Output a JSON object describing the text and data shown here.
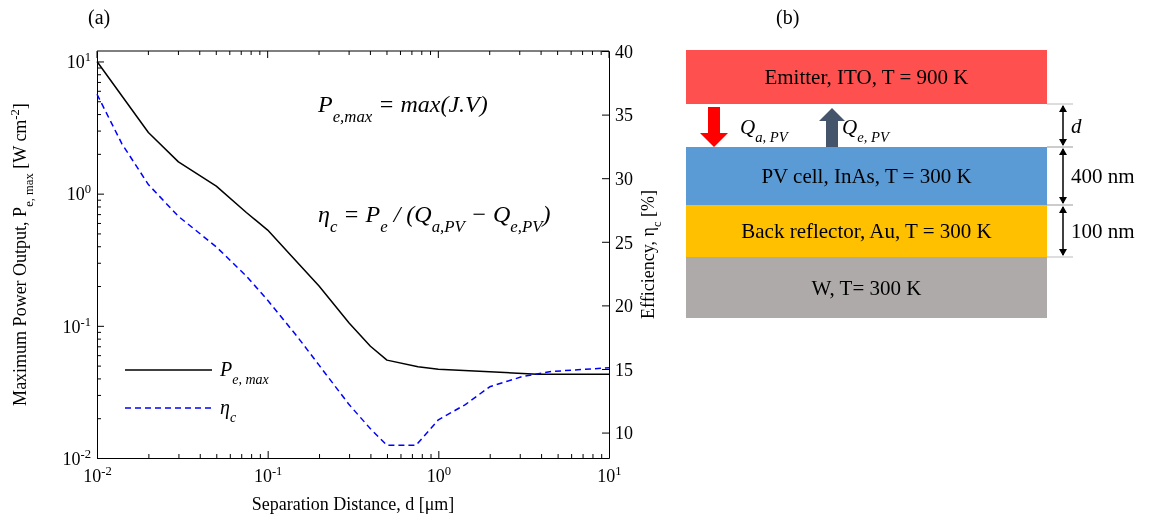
{
  "chart_data": [
    {
      "type": "line",
      "title": "(a)",
      "xlabel": "Separation Distance, d [μm]",
      "ylabel": "Maximum Power Output, P$_{e, max}$ [W cm$^{-2}$]",
      "y2label": "Efficiency, η$_{c}$ [%]",
      "log": "xy",
      "grid": false,
      "legend": "bottom left",
      "marker": "none",
      "xlim": [
        0.01,
        10
      ],
      "ylim": [
        0.01,
        12
      ],
      "y2lim": [
        8,
        40
      ],
      "xticks": [
        {
          "value": 0.01,
          "label": "10$^{-2}$"
        },
        {
          "value": 0.02,
          "label": null
        },
        {
          "value": 0.03,
          "label": null
        },
        {
          "value": 0.04,
          "label": null
        },
        {
          "value": 0.05,
          "label": null
        },
        {
          "value": 0.06,
          "label": null
        },
        {
          "value": 0.07,
          "label": null
        },
        {
          "value": 0.08,
          "label": null
        },
        {
          "value": 0.09,
          "label": null
        },
        {
          "value": 0.1,
          "label": "10$^{-1}$"
        },
        {
          "value": 0.2,
          "label": null
        },
        {
          "value": 0.3,
          "label": null
        },
        {
          "value": 0.4,
          "label": null
        },
        {
          "value": 0.5,
          "label": null
        },
        {
          "value": 0.6,
          "label": null
        },
        {
          "value": 0.7,
          "label": null
        },
        {
          "value": 0.8,
          "label": null
        },
        {
          "value": 0.9,
          "label": null
        },
        {
          "value": 1,
          "label": "10$^{0}$"
        },
        {
          "value": 2,
          "label": null
        },
        {
          "value": 3,
          "label": null
        },
        {
          "value": 4,
          "label": null
        },
        {
          "value": 5,
          "label": null
        },
        {
          "value": 6,
          "label": null
        },
        {
          "value": 7,
          "label": null
        },
        {
          "value": 8,
          "label": null
        },
        {
          "value": 9,
          "label": null
        },
        {
          "value": 10,
          "label": "10$^{1}$"
        }
      ],
      "yticks": [
        {
          "value": 0.01,
          "label": "10$^{-2}$"
        },
        {
          "value": 0.02,
          "label": null
        },
        {
          "value": 0.03,
          "label": null
        },
        {
          "value": 0.04,
          "label": null
        },
        {
          "value": 0.05,
          "label": null
        },
        {
          "value": 0.06,
          "label": null
        },
        {
          "value": 0.07,
          "label": null
        },
        {
          "value": 0.08,
          "label": null
        },
        {
          "value": 0.09,
          "label": null
        },
        {
          "value": 0.1,
          "label": "10$^{-1}$"
        },
        {
          "value": 0.2,
          "label": null
        },
        {
          "value": 0.3,
          "label": null
        },
        {
          "value": 0.4,
          "label": null
        },
        {
          "value": 0.5,
          "label": null
        },
        {
          "value": 0.6,
          "label": null
        },
        {
          "value": 0.7,
          "label": null
        },
        {
          "value": 0.8,
          "label": null
        },
        {
          "value": 0.9,
          "label": null
        },
        {
          "value": 1,
          "label": "10$^{0}$"
        },
        {
          "value": 2,
          "label": null
        },
        {
          "value": 3,
          "label": null
        },
        {
          "value": 4,
          "label": null
        },
        {
          "value": 5,
          "label": null
        },
        {
          "value": 6,
          "label": null
        },
        {
          "value": 7,
          "label": null
        },
        {
          "value": 8,
          "label": null
        },
        {
          "value": 9,
          "label": null
        },
        {
          "value": 10,
          "label": "10$^{1}$"
        }
      ],
      "y2ticks": [
        10,
        15,
        20,
        25,
        30,
        35,
        40
      ],
      "annotations": [
        "P$_{e,max}$ = max(J.V)",
        "η$_{c}$ = P$_{e}$ / (Q$_{a,PV}$ − Q$_{e,PV}$)"
      ],
      "series": [
        {
          "name": "P$_{e, max}$",
          "color": "#000000",
          "line_style": "solid",
          "x": [
            0.01,
            0.02,
            0.03,
            0.05,
            0.075,
            0.1,
            0.2,
            0.3,
            0.4,
            0.5,
            0.76,
            1,
            2,
            3.8,
            10
          ],
          "values": [
            10,
            2.9,
            1.74,
            1.14,
            0.72,
            0.53,
            0.2,
            0.105,
            0.07,
            0.055,
            0.049,
            0.047,
            0.045,
            0.043,
            0.043
          ]
        },
        {
          "name": "η$_{c}$",
          "color": "#0000ff",
          "line_style": "dashed",
          "axis": "y2",
          "x": [
            0.01,
            0.014,
            0.02,
            0.03,
            0.05,
            0.075,
            0.1,
            0.15,
            0.2,
            0.3,
            0.4,
            0.5,
            0.74,
            1,
            1.44,
            2,
            3.1,
            4.6,
            10
          ],
          "values": [
            36.6,
            32.7,
            29.5,
            27,
            24.6,
            22.3,
            20.4,
            17.5,
            15.3,
            12.2,
            10.3,
            9,
            9,
            11,
            12.2,
            13.6,
            14.4,
            14.8,
            15.1
          ]
        }
      ]
    },
    {
      "type": "other",
      "title": "(b)",
      "categories": [
        "Emitter, ITO, T = 900 K",
        "PV cell, InAs, T = 300 K",
        "Back reflector, Au, T = 300 K",
        "W, T= 300 K"
      ],
      "colors": [
        "#ff5050",
        "#5b9bd5",
        "#ffc000",
        "#aeaaaa"
      ],
      "annotations": [
        "Q$_{a, PV}$",
        "Q$_{e, PV}$",
        "d",
        "400 nm",
        "100 nm"
      ]
    }
  ]
}
